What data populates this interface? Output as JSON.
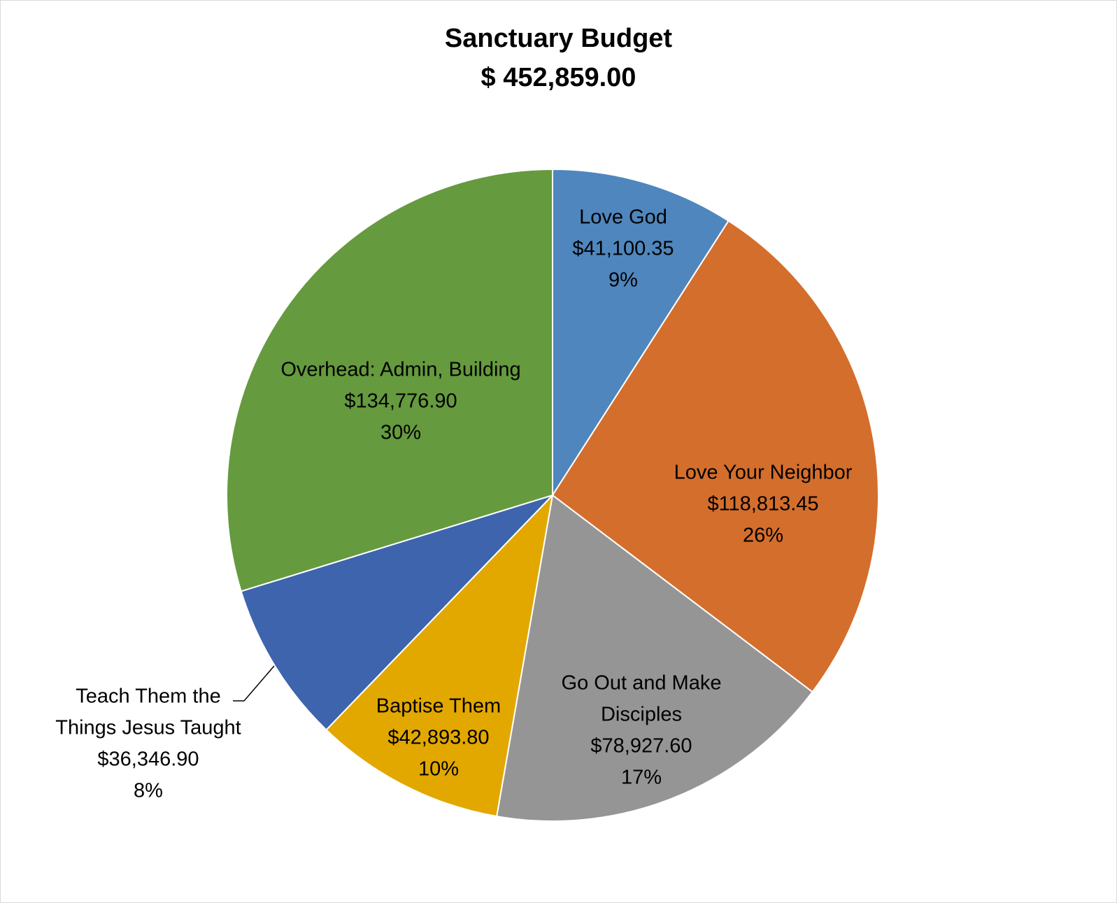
{
  "chart_data": {
    "type": "pie",
    "title": "Sanctuary Budget",
    "subtitle": "$ 452,859.00",
    "start_angle_deg": 0,
    "direction": "clockwise",
    "slices": [
      {
        "name": "Love God",
        "label_lines": [
          "Love God"
        ],
        "value": 41100.35,
        "value_label": "$41,100.35",
        "percent_label": "9%",
        "color": "#4f86bd"
      },
      {
        "name": "Love Your Neighbor",
        "label_lines": [
          "Love Your Neighbor"
        ],
        "value": 118813.45,
        "value_label": "$118,813.45",
        "percent_label": "26%",
        "color": "#d46e2c"
      },
      {
        "name": "Go Out and Make Disciples",
        "label_lines": [
          "Go Out and Make",
          "Disciples"
        ],
        "value": 78927.6,
        "value_label": "$78,927.60",
        "percent_label": "17%",
        "color": "#959595"
      },
      {
        "name": "Baptise Them",
        "label_lines": [
          "Baptise Them"
        ],
        "value": 42893.8,
        "value_label": "$42,893.80",
        "percent_label": "10%",
        "color": "#e2a800"
      },
      {
        "name": "Teach Them the Things Jesus Taught",
        "label_lines": [
          "Teach Them the",
          "Things Jesus Taught"
        ],
        "value": 36346.9,
        "value_label": "$36,346.90",
        "percent_label": "8%",
        "color": "#3d64ad"
      },
      {
        "name": "Overhead: Admin, Building",
        "label_lines": [
          "Overhead: Admin, Building"
        ],
        "value": 134776.9,
        "value_label": "$134,776.90",
        "percent_label": "30%",
        "color": "#659a3e"
      }
    ]
  }
}
